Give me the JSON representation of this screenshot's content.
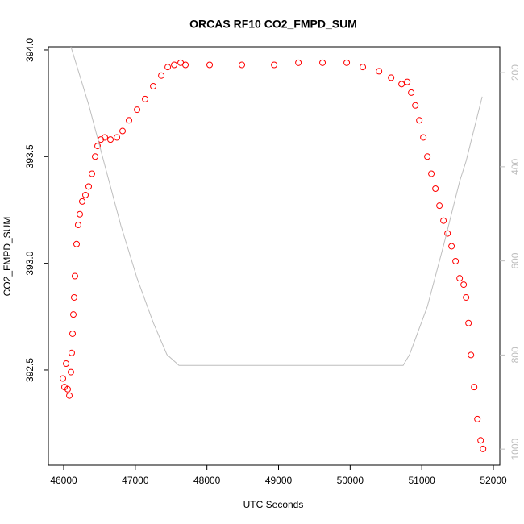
{
  "chart_data": {
    "type": "scatter",
    "title": "ORCAS RF10 CO2_FMPD_SUM",
    "xlabel": "UTC Seconds",
    "ylabel": "CO2_FMPD_SUM",
    "xlim": [
      45786,
      52090
    ],
    "xticks": [
      46000,
      47000,
      48000,
      49000,
      50000,
      51000,
      52000
    ],
    "ylim": [
      392.054,
      394.015
    ],
    "yticks": [
      {
        "value": 392.5,
        "label": "392.5"
      },
      {
        "value": 393.0,
        "label": "393.0"
      },
      {
        "value": 393.5,
        "label": "393.5"
      },
      {
        "value": 394.0,
        "label": "394.0"
      }
    ],
    "y2lim": [
      1034,
      145
    ],
    "y2ticks": [
      200,
      400,
      600,
      800,
      1000
    ],
    "y2color": "#bebebe",
    "series": [
      {
        "color": "#ff0000",
        "style": "points",
        "x": [
          45989,
          46011,
          46034,
          46056,
          46079,
          46101,
          46112,
          46124,
          46135,
          46146,
          46157,
          46180,
          46202,
          46225,
          46259,
          46304,
          46349,
          46394,
          46439,
          46473,
          46518,
          46574,
          46653,
          46743,
          46822,
          46912,
          47025,
          47137,
          47250,
          47363,
          47453,
          47543,
          47633,
          47700,
          48038,
          48488,
          48939,
          49277,
          49614,
          49952,
          50177,
          50403,
          50572,
          50718,
          50797,
          50853,
          50910,
          50966,
          51022,
          51078,
          51134,
          51191,
          51247,
          51303,
          51360,
          51416,
          51472,
          51529,
          51585,
          51619,
          51653,
          51687,
          51732,
          51777,
          51822,
          51856
        ],
        "values": [
          392.46,
          392.42,
          392.53,
          392.41,
          392.38,
          392.49,
          392.58,
          392.67,
          392.76,
          392.84,
          392.94,
          393.09,
          393.18,
          393.23,
          393.29,
          393.32,
          393.36,
          393.42,
          393.5,
          393.55,
          393.58,
          393.59,
          393.58,
          393.59,
          393.62,
          393.67,
          393.72,
          393.77,
          393.83,
          393.88,
          393.92,
          393.93,
          393.94,
          393.93,
          393.93,
          393.93,
          393.93,
          393.94,
          393.94,
          393.94,
          393.92,
          393.9,
          393.87,
          393.84,
          393.85,
          393.8,
          393.74,
          393.67,
          393.59,
          393.5,
          393.42,
          393.35,
          393.27,
          393.2,
          393.14,
          393.08,
          393.01,
          392.93,
          392.9,
          392.84,
          392.72,
          392.57,
          392.42,
          392.27,
          392.17,
          392.13
        ]
      },
      {
        "color": "#bebebe",
        "style": "line",
        "axis": "y2",
        "x": [
          46101,
          46349,
          46574,
          46799,
          47025,
          47250,
          47441,
          47610,
          50740,
          50830,
          51078,
          51303,
          51529,
          51619,
          51844
        ],
        "values": [
          145,
          268,
          397,
          525,
          637,
          731,
          799,
          822,
          822,
          799,
          697,
          568,
          431,
          388,
          251
        ]
      }
    ]
  }
}
